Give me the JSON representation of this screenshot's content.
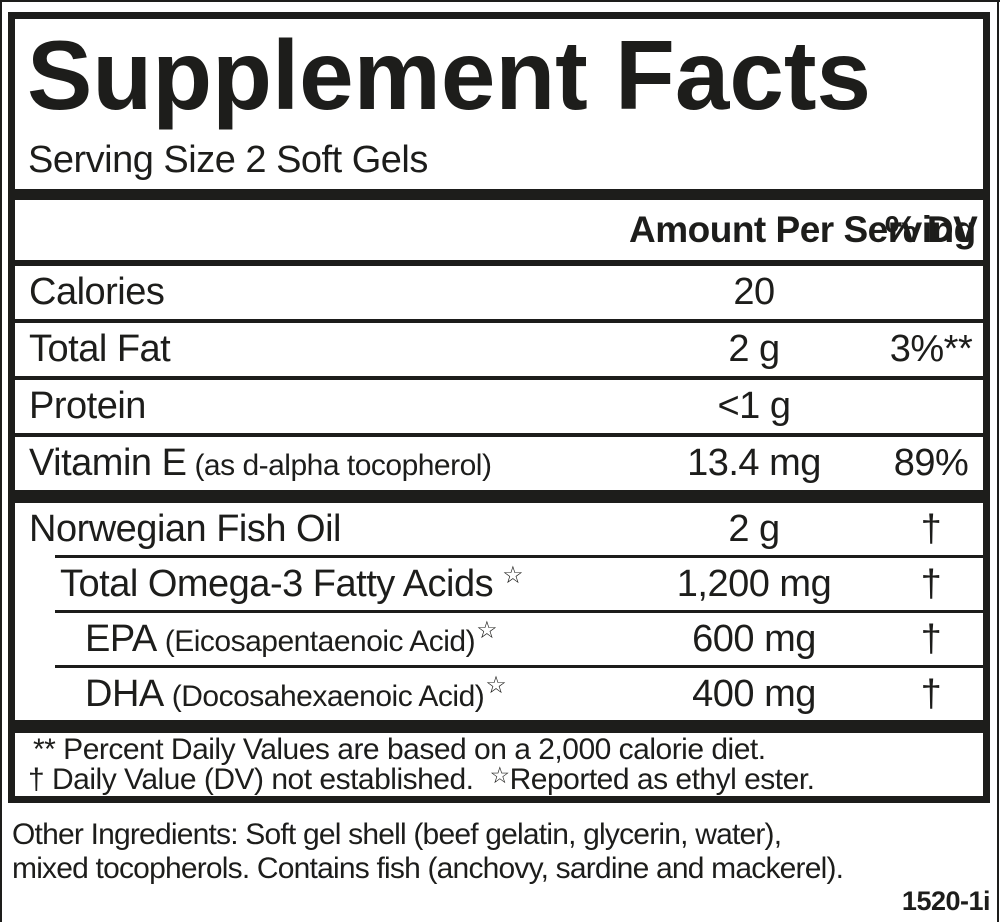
{
  "colors": {
    "ink": "#1d1d1b",
    "background": "#ffffff"
  },
  "label": {
    "title": "Supplement Facts",
    "serving_size": "Serving Size 2 Soft Gels",
    "header": {
      "amount": "Amount Per Serving",
      "dv": "% DV"
    },
    "rows": [
      {
        "name": "Calories",
        "sub": "",
        "star": "",
        "amount": "20",
        "dv": ""
      },
      {
        "name": "Total Fat",
        "sub": "",
        "star": "",
        "amount": "2 g",
        "dv": "3%**"
      },
      {
        "name": "Protein",
        "sub": "",
        "star": "",
        "amount": "<1 g",
        "dv": ""
      },
      {
        "name": "Vitamin E",
        "sub": "(as d-alpha tocopherol)",
        "star": "",
        "amount": "13.4 mg",
        "dv": "89%"
      },
      {
        "name": "Norwegian Fish Oil",
        "sub": "",
        "star": "",
        "amount": "2 g",
        "dv": "†"
      },
      {
        "name": "Total Omega-3 Fatty Acids",
        "sub": "",
        "star": "☆",
        "amount": "1,200 mg",
        "dv": "†"
      },
      {
        "name": "EPA",
        "sub": "(Eicosapentaenoic Acid)",
        "star": "☆",
        "amount": "600 mg",
        "dv": "†"
      },
      {
        "name": "DHA",
        "sub": "(Docosahexaenoic Acid)",
        "star": "☆",
        "amount": "400 mg",
        "dv": "†"
      }
    ],
    "footnotes": {
      "line1": "** Percent Daily Values are based on a 2,000 calorie diet.",
      "line2_text": "† Daily Value (DV) not established.",
      "line2_star": "☆",
      "line2_text2": "Reported as ethyl ester."
    },
    "other_ingredients_lines": [
      "Other Ingredients: Soft gel shell (beef gelatin, glycerin, water),",
      "mixed tocopherols. Contains fish (anchovy, sardine and mackerel)."
    ],
    "item_code": "1520-1i"
  }
}
